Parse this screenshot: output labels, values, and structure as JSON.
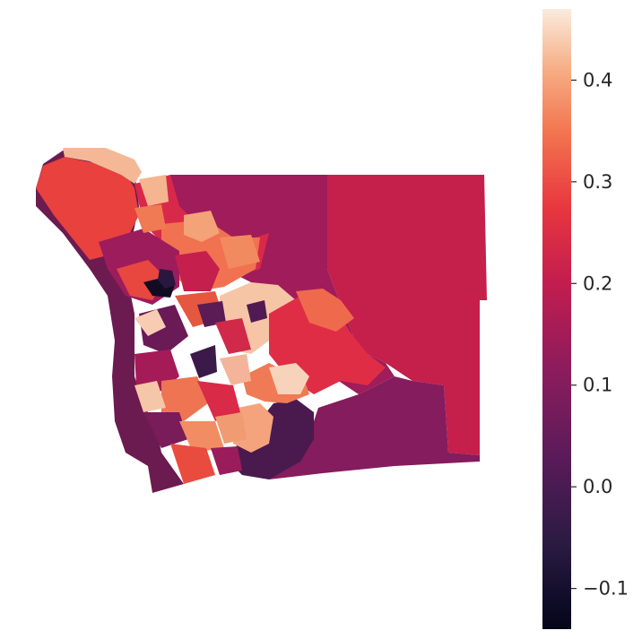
{
  "map": {
    "colormap": "rocket",
    "colors": {
      "fill_low": "#0c0920",
      "fill_mid": "#8e1d5b",
      "fill_high": "#f6dccc",
      "outline_light": "#e7b8a0",
      "shadow_dark": "#6a1a4f"
    }
  },
  "colorbar": {
    "min": -0.14,
    "max": 0.47,
    "ticks": [
      {
        "value": -0.1,
        "label": "−0.1"
      },
      {
        "value": 0.0,
        "label": "0.0"
      },
      {
        "value": 0.1,
        "label": "0.1"
      },
      {
        "value": 0.2,
        "label": "0.2"
      },
      {
        "value": 0.3,
        "label": "0.3"
      },
      {
        "value": 0.4,
        "label": "0.4"
      }
    ]
  }
}
